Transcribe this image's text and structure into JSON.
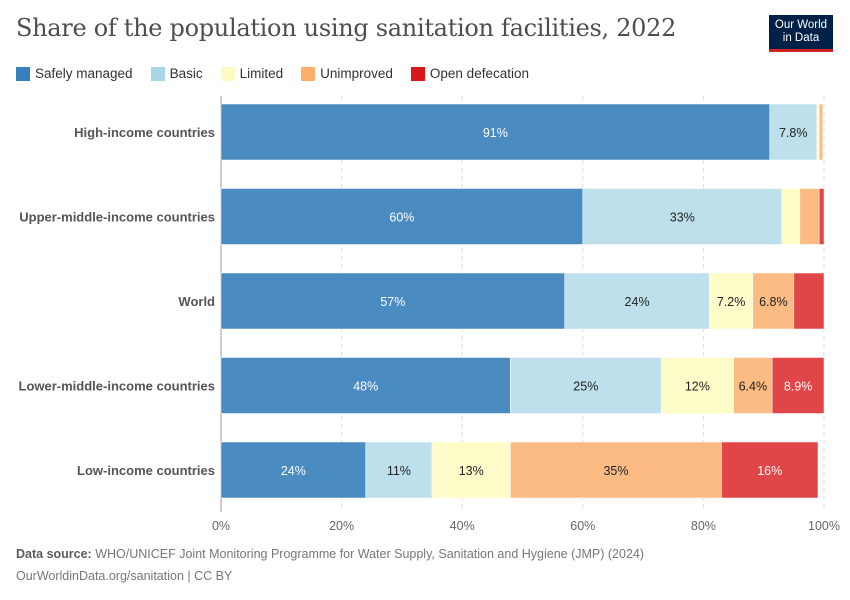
{
  "chart_data": {
    "type": "bar",
    "orientation": "horizontal",
    "stacked": true,
    "title": "Share of the population using sanitation facilities, 2022",
    "categories": [
      "High-income countries",
      "Upper-middle-income countries",
      "World",
      "Lower-middle-income countries",
      "Low-income countries"
    ],
    "series": [
      {
        "name": "Safely managed",
        "color": "#4a8bc2",
        "values": [
          91,
          60,
          57,
          48,
          24
        ],
        "labels": [
          "91%",
          "60%",
          "57%",
          "48%",
          "24%"
        ]
      },
      {
        "name": "Basic",
        "color": "#bde0ec",
        "values": [
          7.8,
          33,
          24,
          25,
          11
        ],
        "labels": [
          "7.8%",
          "33%",
          "24%",
          "25%",
          "11%"
        ]
      },
      {
        "name": "Limited",
        "color": "#fefcc9",
        "values": [
          0.4,
          3,
          7.2,
          12,
          13
        ],
        "labels": [
          "",
          "",
          "7.2%",
          "12%",
          "13%"
        ]
      },
      {
        "name": "Unimproved",
        "color": "#fbbb82",
        "values": [
          0.6,
          3.2,
          6.8,
          6.4,
          35
        ],
        "labels": [
          "",
          "",
          "6.8%",
          "6.4%",
          "35%"
        ]
      },
      {
        "name": "Open defecation",
        "color": "#e04548",
        "values": [
          0,
          0.8,
          5,
          8.9,
          16
        ],
        "labels": [
          "",
          "",
          "",
          "8.9%",
          "16%"
        ]
      }
    ],
    "xlim": [
      0,
      100
    ],
    "xticks": [
      "0%",
      "20%",
      "40%",
      "60%",
      "80%",
      "100%"
    ],
    "xtick_values": [
      0,
      20,
      40,
      60,
      80,
      100
    ],
    "grid": true,
    "legend_position": "top-left"
  },
  "legend": [
    {
      "label": "Safely managed",
      "color": "#3a7fbd"
    },
    {
      "label": "Basic",
      "color": "#a9d7e8"
    },
    {
      "label": "Limited",
      "color": "#fdfbc4"
    },
    {
      "label": "Unimproved",
      "color": "#fdae6b"
    },
    {
      "label": "Open defecation",
      "color": "#d7191c"
    }
  ],
  "logo": {
    "line1": "Our World",
    "line2": "in Data"
  },
  "footer": {
    "source_label": "Data source:",
    "source_text": " WHO/UNICEF Joint Monitoring Programme for Water Supply, Sanitation and Hygiene (JMP) (2024)",
    "url": "OurWorldinData.org/sanitation | CC BY"
  }
}
